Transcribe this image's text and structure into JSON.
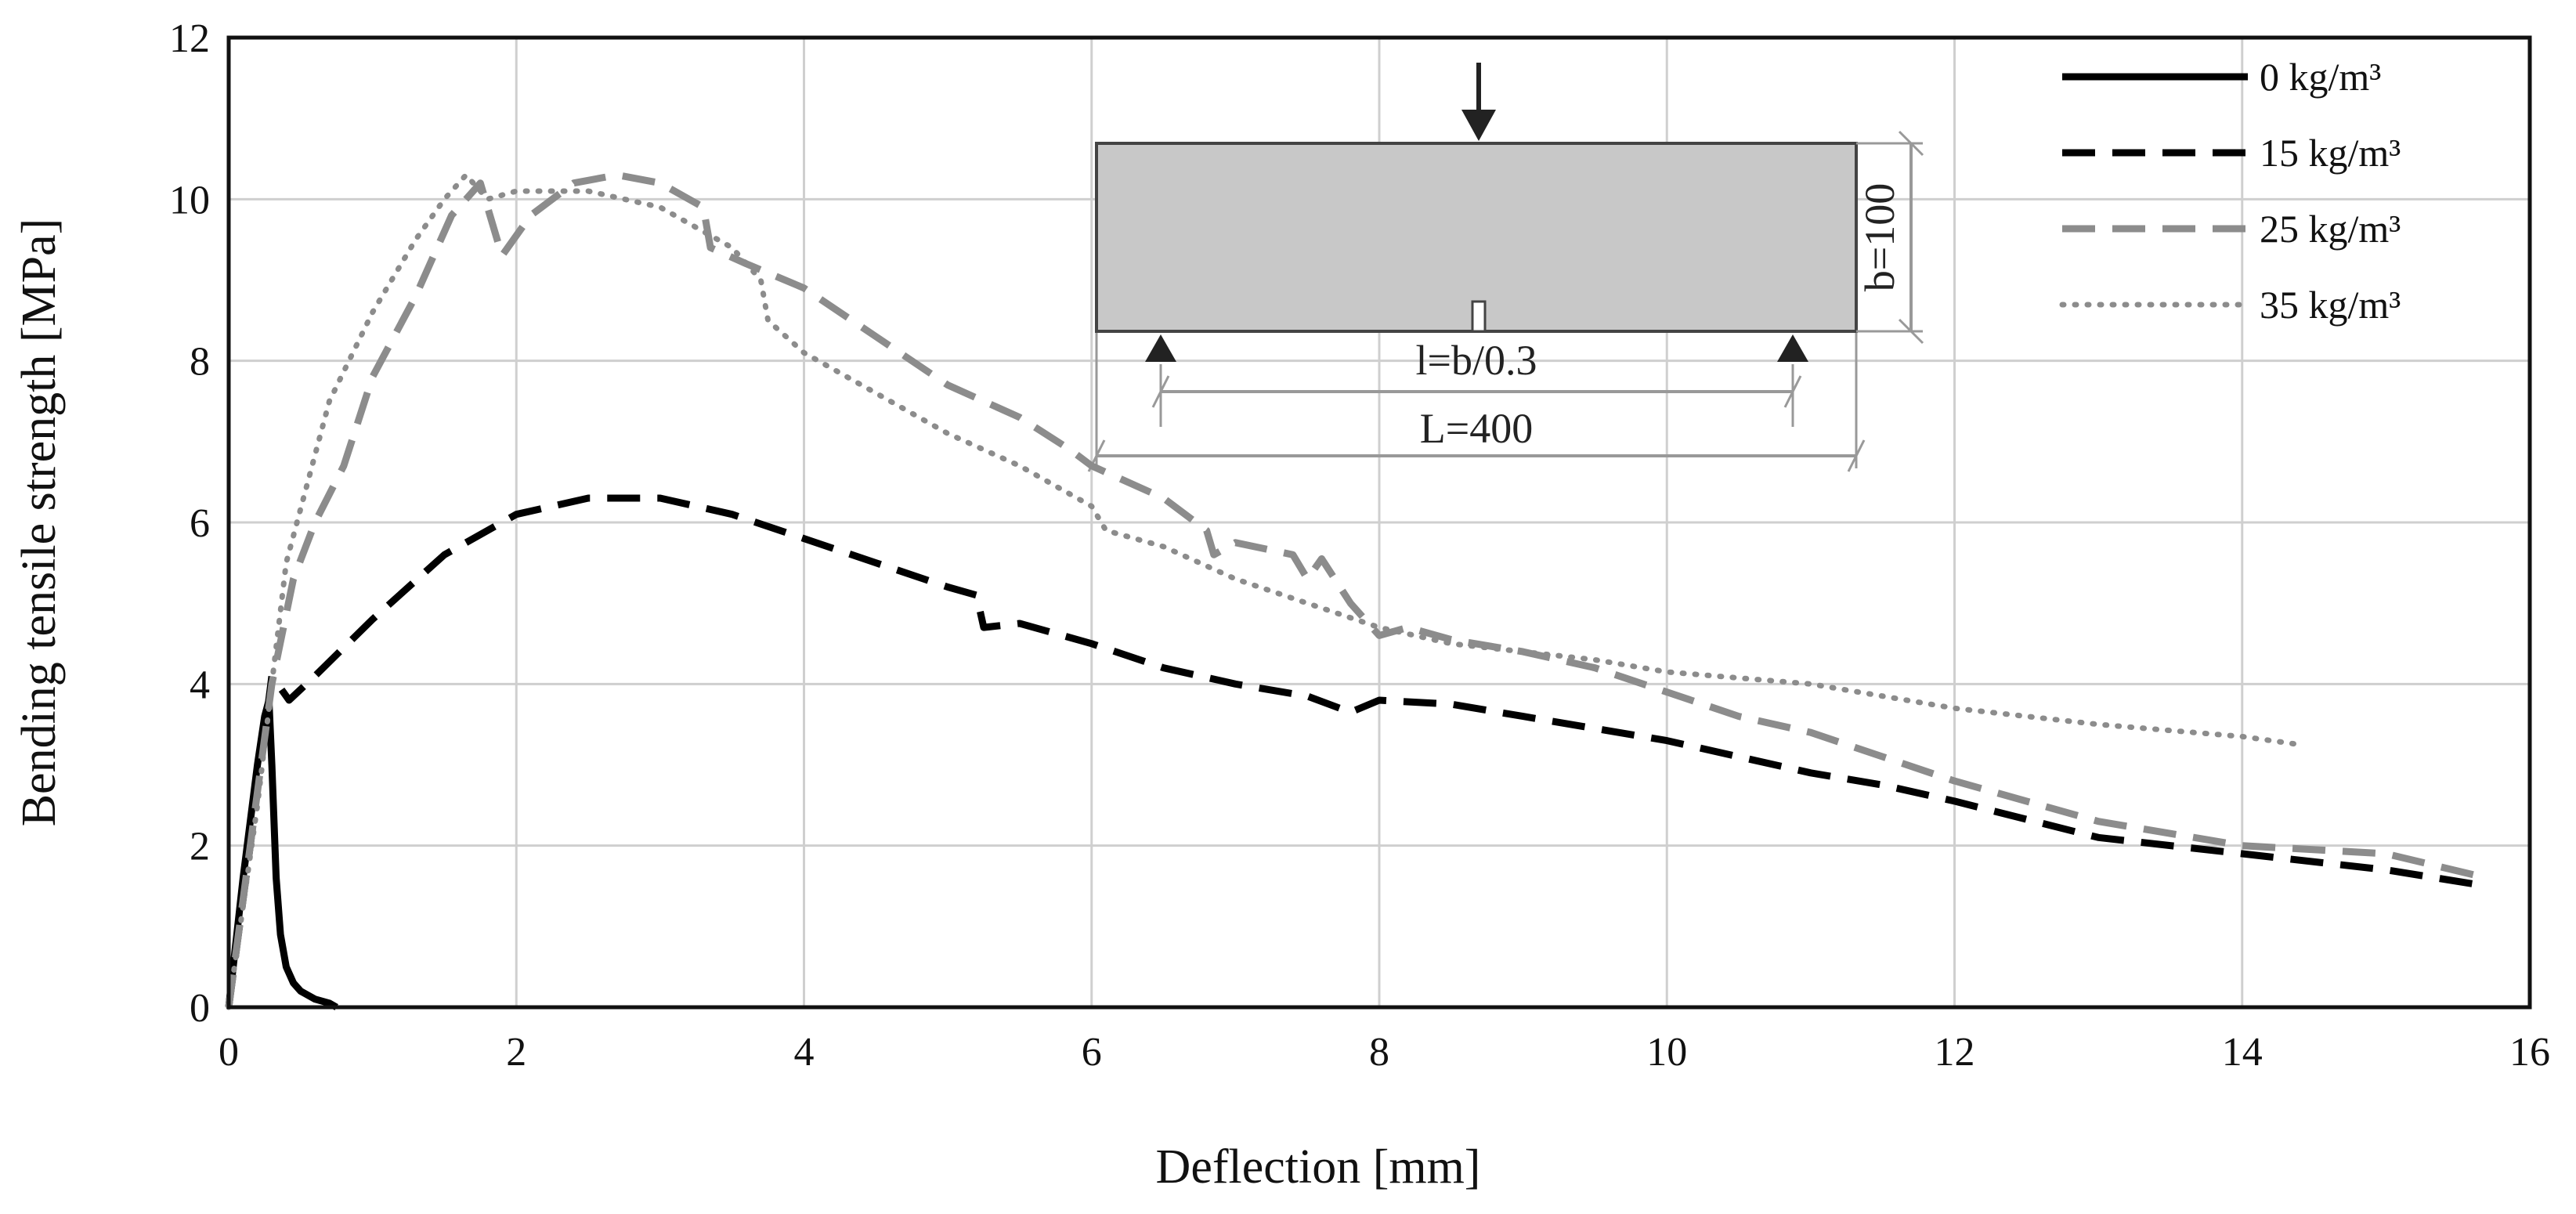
{
  "chart_data": {
    "type": "line",
    "title": "",
    "xlabel": "Deflection [mm]",
    "ylabel": "Bending tensile strength [MPa]",
    "xlim": [
      0,
      16
    ],
    "ylim": [
      0,
      12
    ],
    "x_ticks": [
      "0",
      "2",
      "4",
      "6",
      "8",
      "10",
      "12",
      "14",
      "16"
    ],
    "y_ticks": [
      "0",
      "2",
      "4",
      "6",
      "8",
      "10",
      "12"
    ],
    "grid": true,
    "legend_position": "top-right",
    "series": [
      {
        "name": "0 kg/m³",
        "color": "#000000",
        "dash": "solid",
        "x": [
          0,
          0.1,
          0.2,
          0.25,
          0.28,
          0.3,
          0.33,
          0.36,
          0.4,
          0.45,
          0.5,
          0.6,
          0.7,
          0.75
        ],
        "y": [
          0,
          1.6,
          3.0,
          3.6,
          3.8,
          3.0,
          1.6,
          0.9,
          0.5,
          0.3,
          0.2,
          0.1,
          0.05,
          0
        ]
      },
      {
        "name": "15 kg/m³",
        "color": "#000000",
        "dash": "dashed",
        "x": [
          0,
          0.15,
          0.3,
          0.42,
          0.6,
          1.0,
          1.5,
          2.0,
          2.5,
          3.0,
          3.5,
          4.0,
          4.5,
          5.0,
          5.2,
          5.25,
          5.5,
          6.0,
          6.5,
          7.0,
          7.5,
          7.8,
          8.0,
          8.5,
          9.0,
          9.5,
          10.0,
          10.5,
          11.0,
          11.5,
          12.0,
          13.0,
          14.0,
          15.0,
          15.7
        ],
        "y": [
          0,
          2.0,
          4.1,
          3.8,
          4.1,
          4.8,
          5.6,
          6.1,
          6.3,
          6.3,
          6.1,
          5.8,
          5.5,
          5.2,
          5.1,
          4.7,
          4.75,
          4.5,
          4.2,
          4.0,
          3.85,
          3.65,
          3.8,
          3.75,
          3.6,
          3.45,
          3.3,
          3.1,
          2.9,
          2.75,
          2.55,
          2.1,
          1.9,
          1.7,
          1.5
        ]
      },
      {
        "name": "25 kg/m³",
        "color": "#8c8c8c",
        "dash": "dashed",
        "x": [
          0,
          0.3,
          0.45,
          0.6,
          0.8,
          1.0,
          1.3,
          1.55,
          1.75,
          1.9,
          2.1,
          2.4,
          2.7,
          3.0,
          3.3,
          3.35,
          3.6,
          4.0,
          4.5,
          5.0,
          5.5,
          5.85,
          6.0,
          6.5,
          6.8,
          6.85,
          7.0,
          7.4,
          7.5,
          7.6,
          7.8,
          8.0,
          8.2,
          8.5,
          9.0,
          9.5,
          10.0,
          10.5,
          11.0,
          12.0,
          13.0,
          14.0,
          15.0,
          15.7
        ],
        "y": [
          0,
          4.0,
          5.3,
          6.0,
          6.7,
          7.8,
          8.8,
          9.8,
          10.2,
          9.3,
          9.8,
          10.2,
          10.3,
          10.2,
          9.9,
          9.4,
          9.2,
          8.9,
          8.3,
          7.7,
          7.3,
          6.9,
          6.7,
          6.3,
          5.9,
          5.6,
          5.75,
          5.6,
          5.3,
          5.55,
          5.0,
          4.6,
          4.7,
          4.55,
          4.4,
          4.2,
          3.9,
          3.6,
          3.4,
          2.8,
          2.3,
          2.0,
          1.9,
          1.6
        ]
      },
      {
        "name": "35 kg/m³",
        "color": "#8c8c8c",
        "dash": "dotted",
        "x": [
          0,
          0.2,
          0.4,
          0.7,
          1.0,
          1.3,
          1.5,
          1.65,
          1.8,
          2.0,
          2.5,
          3.0,
          3.5,
          3.7,
          3.75,
          4.0,
          4.5,
          5.0,
          5.5,
          6.0,
          6.1,
          6.5,
          7.0,
          7.5,
          8.0,
          8.5,
          9.0,
          9.5,
          10.0,
          11.0,
          12.0,
          13.0,
          14.0,
          14.4
        ],
        "y": [
          0,
          2.5,
          5.5,
          7.5,
          8.6,
          9.5,
          10.0,
          10.3,
          10.0,
          10.1,
          10.1,
          9.9,
          9.4,
          9.0,
          8.5,
          8.1,
          7.6,
          7.1,
          6.7,
          6.2,
          5.9,
          5.7,
          5.3,
          5.0,
          4.7,
          4.5,
          4.4,
          4.3,
          4.15,
          4.0,
          3.7,
          3.5,
          3.35,
          3.25
        ]
      }
    ]
  },
  "inset": {
    "depth_label": "b=100",
    "span_label": "l=b/0.3",
    "length_label": "L=400"
  }
}
